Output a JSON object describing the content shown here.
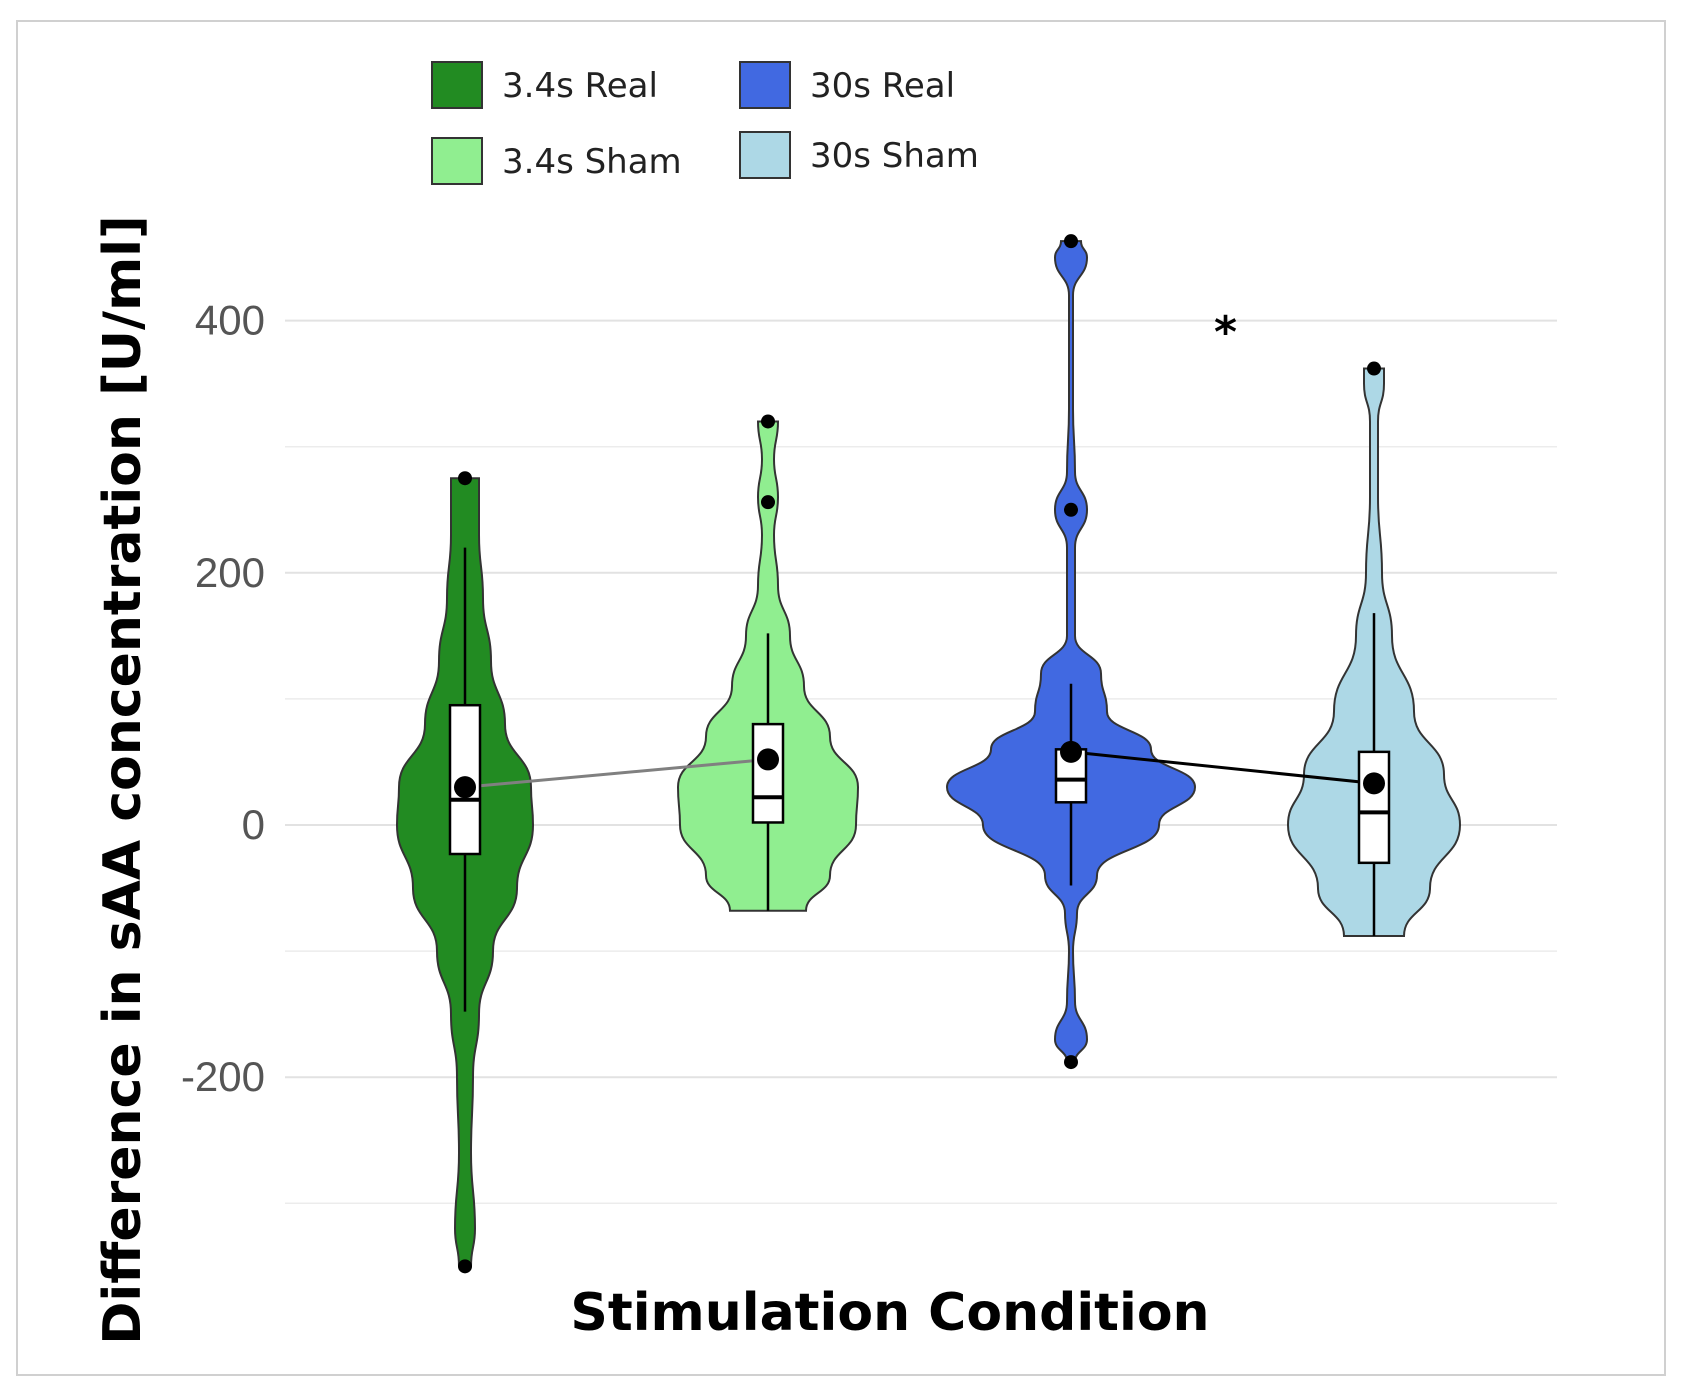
{
  "chart_data": {
    "type": "violin",
    "title": "",
    "xlabel": "Stimulation Condition",
    "ylabel": "Difference in sAA concentration [U/ml]",
    "ylim": [
      -370,
      500
    ],
    "yticks": [
      -200,
      0,
      200,
      400
    ],
    "grid": true,
    "legend_position": "top",
    "categories": [
      "3.4s Real",
      "3.4s Sham",
      "30s Real",
      "30s Sham"
    ],
    "colors": {
      "3.4s Real": "#228B22",
      "3.4s Sham": "#90EE90",
      "30s Real": "#4169E1",
      "30s Sham": "#ADD8E6"
    },
    "series": [
      {
        "name": "3.4s Real",
        "min": -350,
        "q1": -23,
        "median": 20,
        "q3": 95,
        "max": 275,
        "whisker_low": -148,
        "whisker_high": 220,
        "mean": 30,
        "outliers": [
          275,
          -350
        ],
        "density": [
          [
            -350,
            6
          ],
          [
            -320,
            10
          ],
          [
            -260,
            6
          ],
          [
            -200,
            8
          ],
          [
            -150,
            14
          ],
          [
            -100,
            28
          ],
          [
            -50,
            52
          ],
          [
            0,
            68
          ],
          [
            30,
            66
          ],
          [
            80,
            40
          ],
          [
            130,
            26
          ],
          [
            180,
            18
          ],
          [
            230,
            14
          ],
          [
            275,
            14
          ]
        ]
      },
      {
        "name": "3.4s Sham",
        "min": -68,
        "q1": 2,
        "median": 22,
        "q3": 80,
        "max": 320,
        "whisker_low": -68,
        "whisker_high": 152,
        "mean": 52,
        "outliers": [
          320,
          256
        ],
        "density": [
          [
            -68,
            38
          ],
          [
            -40,
            62
          ],
          [
            0,
            88
          ],
          [
            30,
            90
          ],
          [
            70,
            62
          ],
          [
            110,
            36
          ],
          [
            150,
            22
          ],
          [
            190,
            10
          ],
          [
            230,
            6
          ],
          [
            260,
            10
          ],
          [
            290,
            6
          ],
          [
            320,
            10
          ]
        ]
      },
      {
        "name": "30s Real",
        "min": -188,
        "q1": 18,
        "median": 36,
        "q3": 60,
        "max": 463,
        "whisker_low": -48,
        "whisker_high": 112,
        "mean": 58,
        "outliers": [
          463,
          250,
          -188
        ],
        "density": [
          [
            -188,
            4
          ],
          [
            -170,
            16
          ],
          [
            -140,
            4
          ],
          [
            -100,
            2
          ],
          [
            -70,
            6
          ],
          [
            -40,
            26
          ],
          [
            0,
            88
          ],
          [
            30,
            124
          ],
          [
            60,
            80
          ],
          [
            90,
            36
          ],
          [
            120,
            30
          ],
          [
            150,
            4
          ],
          [
            190,
            4
          ],
          [
            220,
            4
          ],
          [
            250,
            16
          ],
          [
            280,
            4
          ],
          [
            330,
            2
          ],
          [
            420,
            2
          ],
          [
            450,
            16
          ],
          [
            463,
            10
          ]
        ]
      },
      {
        "name": "30s Sham",
        "min": -88,
        "q1": -30,
        "median": 10,
        "q3": 58,
        "max": 362,
        "whisker_low": -88,
        "whisker_high": 168,
        "mean": 33,
        "outliers": [
          362
        ],
        "density": [
          [
            -88,
            30
          ],
          [
            -50,
            56
          ],
          [
            0,
            86
          ],
          [
            40,
            70
          ],
          [
            90,
            40
          ],
          [
            150,
            18
          ],
          [
            200,
            8
          ],
          [
            260,
            4
          ],
          [
            320,
            4
          ],
          [
            350,
            10
          ],
          [
            362,
            10
          ]
        ]
      }
    ],
    "mean_lines": [
      {
        "from": "3.4s Real",
        "to": "3.4s Sham",
        "color": "#808080"
      },
      {
        "from": "30s Real",
        "to": "30s Sham",
        "color": "#000000"
      }
    ],
    "annotations": [
      {
        "text": "*",
        "x": "between 30s Real and 30s Sham",
        "y": 390
      }
    ]
  }
}
